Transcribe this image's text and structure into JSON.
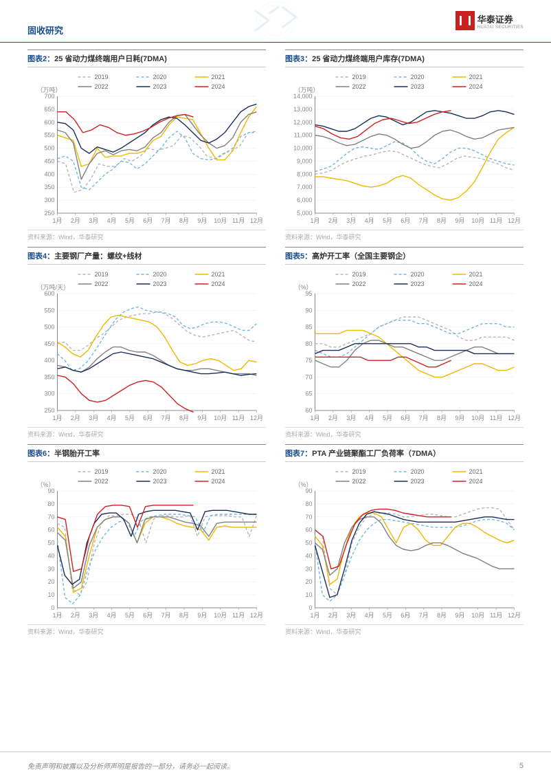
{
  "header": {
    "section": "固收研究",
    "logo_cn": "华泰证券",
    "logo_en": "HUATAI SECURITIES"
  },
  "footer": {
    "disclaimer": "免责声明和披露以及分析师声明是报告的一部分，请务必一起阅读。",
    "page": "5"
  },
  "common": {
    "source": "资料来源：Wind，华泰研究",
    "months": [
      "1月",
      "2月",
      "3月",
      "4月",
      "5月",
      "6月",
      "7月",
      "8月",
      "9月",
      "10月",
      "11月",
      "12月"
    ],
    "series_labels": [
      "2019",
      "2020",
      "2021",
      "2022",
      "2023",
      "2024"
    ],
    "series_colors": [
      "#b5b5b5",
      "#6bb8e0",
      "#f0b800",
      "#808080",
      "#1a2d5c",
      "#d02020"
    ],
    "series_dash": [
      "4,3",
      "4,3",
      "0",
      "0",
      "0",
      "0"
    ],
    "grid_color": "#e8e8e8",
    "axis_color": "#888888",
    "line_width": 1.4
  },
  "charts": [
    {
      "title_prefix": "图表2：",
      "title": "25 省动力煤终端用户日耗(7DMA)",
      "ylabel": "（万吨）",
      "ylim": [
        250,
        700
      ],
      "ytick_step": 50,
      "series": {
        "2019": [
          450,
          440,
          330,
          340,
          380,
          440,
          430,
          430,
          460,
          450,
          470,
          500,
          490,
          500,
          510,
          550,
          540,
          510,
          470,
          460,
          480,
          490,
          510,
          560,
          560
        ],
        "2020": [
          460,
          470,
          450,
          350,
          340,
          370,
          400,
          420,
          450,
          445,
          420,
          440,
          470,
          500,
          540,
          565,
          540,
          480,
          460,
          455,
          460,
          480,
          500,
          545,
          560,
          565
        ],
        "2021": [
          550,
          540,
          530,
          430,
          440,
          500,
          465,
          470,
          470,
          480,
          480,
          490,
          530,
          545,
          590,
          620,
          615,
          610,
          555,
          500,
          455,
          455,
          490,
          560,
          620,
          660
        ],
        "2022": [
          570,
          560,
          520,
          380,
          440,
          480,
          490,
          475,
          490,
          495,
          490,
          505,
          540,
          560,
          600,
          625,
          630,
          590,
          550,
          520,
          500,
          510,
          540,
          600,
          630,
          640
        ],
        "2023": [
          600,
          595,
          570,
          500,
          480,
          505,
          495,
          485,
          500,
          520,
          540,
          560,
          590,
          610,
          620,
          615,
          590,
          560,
          530,
          520,
          535,
          560,
          600,
          640,
          660,
          670
        ],
        "2024": [
          640,
          640,
          610,
          560,
          570,
          590,
          580,
          560,
          550,
          555,
          565,
          580,
          600,
          615,
          625,
          630,
          620
        ]
      }
    },
    {
      "title_prefix": "图表3：",
      "title": "25 省动力煤终端用户库存(7DMA)",
      "ylabel": "（万吨）",
      "ylim": [
        5000,
        14000
      ],
      "ytick_step": 1000,
      "series": {
        "2019": [
          8000,
          8100,
          8300,
          8700,
          9000,
          9200,
          9400,
          9500,
          9700,
          9800,
          9700,
          9400,
          9100,
          8800,
          8600,
          8500,
          8800,
          9200,
          9400,
          9300,
          9200,
          9000,
          8800,
          8500,
          8300
        ],
        "2020": [
          8200,
          8400,
          8600,
          9100,
          9600,
          10000,
          10100,
          10000,
          9900,
          10200,
          10500,
          10400,
          10000,
          9400,
          9000,
          8800,
          9200,
          9700,
          10000,
          10000,
          9800,
          9500,
          9200,
          9000,
          8800,
          8700
        ],
        "2021": [
          7800,
          7800,
          7700,
          7600,
          7500,
          7300,
          7100,
          7000,
          7100,
          7300,
          7700,
          7900,
          7700,
          7200,
          6800,
          6400,
          6100,
          6000,
          6200,
          6700,
          7400,
          8500,
          9700,
          10700,
          11200,
          11600
        ],
        "2022": [
          11000,
          10900,
          10700,
          10400,
          10200,
          10300,
          10600,
          10900,
          11100,
          11000,
          10700,
          10300,
          10000,
          10100,
          10500,
          11000,
          11300,
          11400,
          11200,
          10900,
          10700,
          10800,
          11100,
          11400,
          11500,
          11600
        ],
        "2023": [
          11800,
          11700,
          11500,
          11300,
          11300,
          11500,
          11900,
          12300,
          12500,
          12400,
          12100,
          11800,
          12000,
          12400,
          12800,
          12900,
          12800,
          12700,
          12500,
          12300,
          12300,
          12500,
          12800,
          12900,
          12800,
          12600
        ],
        "2024": [
          11700,
          11500,
          11100,
          10800,
          10700,
          10900,
          11400,
          11900,
          12200,
          12300,
          12100,
          11900,
          12000,
          12300,
          12600,
          12800,
          12900
        ]
      }
    },
    {
      "title_prefix": "图表4：",
      "title": "主要钢厂产量：螺纹+线材",
      "ylabel": "（万吨/天）",
      "ylim": [
        250,
        600
      ],
      "ytick_step": 50,
      "series": {
        "2019": [
          450,
          455,
          430,
          430,
          445,
          465,
          480,
          500,
          520,
          530,
          535,
          540,
          540,
          545,
          540,
          525,
          505,
          485,
          475,
          470,
          475,
          480,
          485,
          490,
          475,
          460,
          455
        ],
        "2020": [
          420,
          400,
          370,
          375,
          395,
          425,
          460,
          495,
          525,
          545,
          555,
          560,
          550,
          545,
          545,
          540,
          530,
          505,
          495,
          500,
          510,
          515,
          515,
          510,
          500,
          490,
          490,
          510
        ],
        "2021": [
          455,
          440,
          420,
          410,
          430,
          470,
          505,
          530,
          535,
          530,
          525,
          520,
          515,
          500,
          470,
          430,
          395,
          385,
          390,
          400,
          405,
          400,
          385,
          370,
          375,
          400,
          395
        ],
        "2022": [
          385,
          380,
          370,
          365,
          380,
          405,
          425,
          440,
          440,
          430,
          425,
          425,
          415,
          400,
          385,
          375,
          370,
          370,
          375,
          375,
          370,
          365,
          360,
          360,
          360,
          355
        ],
        "2023": [
          375,
          380,
          370,
          365,
          375,
          390,
          405,
          420,
          425,
          420,
          415,
          410,
          405,
          395,
          385,
          375,
          370,
          365,
          360,
          360,
          362,
          365,
          360,
          355,
          358,
          360
        ],
        "2024": [
          355,
          350,
          330,
          300,
          280,
          275,
          280,
          295,
          310,
          325,
          335,
          340,
          335,
          320,
          295,
          270,
          255,
          245
        ]
      }
    },
    {
      "title_prefix": "图表5：",
      "title": "高炉开工率（全国主要钢企）",
      "ylabel": "（%）",
      "ylim": [
        60,
        95
      ],
      "ytick_step": 5,
      "series": {
        "2019": [
          80,
          80,
          79,
          79,
          80,
          81,
          82,
          83,
          85,
          86,
          87,
          88,
          88,
          88,
          87,
          86,
          85,
          84,
          82,
          81,
          81,
          82,
          82,
          82,
          82,
          81
        ],
        "2020": [
          78,
          77,
          76,
          76,
          77,
          79,
          81,
          83,
          85,
          86,
          87,
          87,
          87,
          86,
          86,
          85,
          84,
          83,
          83,
          84,
          85,
          86,
          86,
          86,
          85,
          85
        ],
        "2021": [
          83,
          83,
          83,
          83,
          84,
          84,
          84,
          83,
          82,
          80,
          78,
          76,
          74,
          72,
          71,
          70,
          70,
          71,
          72,
          73,
          74,
          74,
          73,
          72,
          72,
          73
        ],
        "2022": [
          75,
          74,
          73,
          73,
          75,
          78,
          80,
          81,
          81,
          80,
          79,
          79,
          78,
          77,
          76,
          75,
          75,
          76,
          77,
          78,
          79,
          79,
          78,
          77,
          77,
          77
        ],
        "2023": [
          77,
          78,
          78,
          78,
          79,
          80,
          80,
          80,
          80,
          80,
          80,
          80,
          80,
          79,
          79,
          78,
          78,
          78,
          78,
          78,
          77,
          77,
          77,
          77,
          77,
          77
        ],
        "2024": [
          76,
          76,
          76,
          76,
          76,
          76,
          76,
          75,
          75,
          75,
          75,
          76,
          76,
          75,
          74,
          73,
          73,
          74,
          75
        ]
      }
    },
    {
      "title_prefix": "图表6：",
      "title": "半钢胎开工率",
      "ylabel": "（%）",
      "ylim": [
        0,
        90
      ],
      "ytick_step": 10,
      "series": {
        "2019": [
          65,
          62,
          15,
          10,
          20,
          50,
          65,
          71,
          71,
          72,
          72,
          68,
          50,
          68,
          71,
          71,
          70,
          70,
          71,
          55,
          70,
          71,
          71,
          71,
          70,
          70,
          55,
          71
        ],
        "2020": [
          52,
          8,
          3,
          10,
          30,
          45,
          55,
          62,
          66,
          68,
          55,
          67,
          70,
          71,
          72,
          72,
          72,
          71,
          70,
          58,
          71,
          72,
          72,
          72,
          72,
          72,
          72
        ],
        "2021": [
          62,
          55,
          12,
          15,
          40,
          62,
          68,
          70,
          70,
          65,
          50,
          65,
          70,
          70,
          68,
          65,
          63,
          62,
          60,
          52,
          62,
          63,
          62,
          62,
          62,
          62
        ],
        "2022": [
          58,
          52,
          15,
          20,
          48,
          62,
          68,
          70,
          70,
          65,
          50,
          68,
          70,
          70,
          70,
          68,
          66,
          65,
          63,
          55,
          65,
          66,
          66,
          66,
          66,
          66
        ],
        "2023": [
          48,
          25,
          18,
          22,
          50,
          65,
          72,
          73,
          73,
          68,
          55,
          72,
          74,
          75,
          75,
          75,
          75,
          74,
          73,
          60,
          74,
          75,
          75,
          75,
          74,
          73,
          72,
          72
        ],
        "2024": [
          70,
          68,
          28,
          30,
          55,
          72,
          78,
          79,
          79,
          78,
          62,
          78,
          79,
          79,
          79,
          79,
          79,
          79
        ]
      }
    },
    {
      "title_prefix": "图表7：",
      "title": "PTA 产业链聚酯工厂负荷率（7DMA）",
      "ylabel": "（%）",
      "ylim": [
        0,
        90
      ],
      "ytick_step": 10,
      "series": {
        "2019": [
          60,
          55,
          15,
          10,
          25,
          50,
          62,
          70,
          72,
          73,
          73,
          72,
          70,
          70,
          71,
          72,
          72,
          71,
          70,
          70,
          72,
          74,
          76,
          77,
          77,
          76,
          68,
          60
        ],
        "2020": [
          50,
          10,
          5,
          10,
          25,
          40,
          52,
          60,
          65,
          68,
          68,
          67,
          66,
          65,
          64,
          63,
          62,
          62,
          62,
          62,
          63,
          65,
          67,
          68,
          68,
          67,
          65,
          60
        ],
        "2021": [
          55,
          48,
          18,
          22,
          45,
          62,
          70,
          73,
          73,
          70,
          60,
          50,
          62,
          65,
          60,
          52,
          48,
          48,
          55,
          62,
          65,
          65,
          62,
          58,
          55,
          52,
          50,
          52
        ],
        "2022": [
          50,
          45,
          25,
          30,
          50,
          62,
          68,
          70,
          70,
          65,
          55,
          48,
          45,
          44,
          45,
          48,
          50,
          50,
          48,
          45,
          42,
          40,
          38,
          35,
          32,
          30,
          30,
          30
        ],
        "2023": [
          48,
          28,
          8,
          10,
          30,
          52,
          65,
          72,
          74,
          73,
          72,
          70,
          68,
          67,
          66,
          66,
          66,
          66,
          66,
          66,
          67,
          68,
          69,
          70,
          70,
          69,
          68,
          68
        ],
        "2024": [
          60,
          55,
          30,
          32,
          50,
          65,
          72,
          75,
          76,
          76,
          75,
          73,
          72,
          71,
          70,
          70,
          70,
          70
        ]
      }
    }
  ]
}
